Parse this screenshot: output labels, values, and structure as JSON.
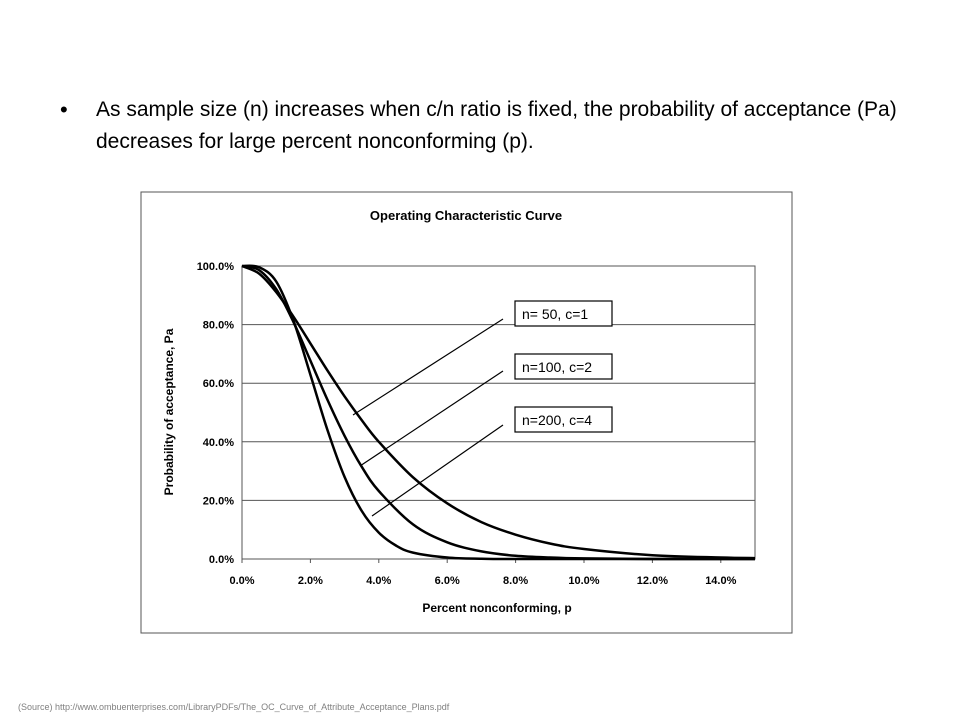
{
  "slide": {
    "bullet_text": "As sample size (n) increases when c/n ratio is fixed, the probability of acceptance (Pa) decreases for large percent nonconforming (p).",
    "source_note": "(Source) http://www.ombuenterprises.com/LibraryPDFs/The_OC_Curve_of_Attribute_Acceptance_Plans.pdf"
  },
  "chart_data": {
    "type": "line",
    "title": "Operating Characteristic Curve",
    "xlabel": "Percent nonconforming, p",
    "ylabel": "Probability of acceptance, Pa",
    "xlim": [
      0,
      0.15
    ],
    "ylim": [
      0,
      1
    ],
    "x_ticks": [
      "0.0%",
      "2.0%",
      "4.0%",
      "6.0%",
      "8.0%",
      "10.0%",
      "12.0%",
      "14.0%"
    ],
    "y_ticks": [
      "0.0%",
      "20.0%",
      "40.0%",
      "60.0%",
      "80.0%",
      "100.0%"
    ],
    "grid": "horizontal",
    "legend": "callout labels",
    "series": [
      {
        "name": "n= 50, c=1",
        "x": [
          0,
          0.005,
          0.01,
          0.015,
          0.02,
          0.025,
          0.03,
          0.035,
          0.04,
          0.05,
          0.06,
          0.07,
          0.08,
          0.09,
          0.1,
          0.12,
          0.14,
          0.15
        ],
        "y": [
          1.0,
          0.974,
          0.911,
          0.828,
          0.736,
          0.643,
          0.555,
          0.474,
          0.4,
          0.279,
          0.19,
          0.126,
          0.083,
          0.053,
          0.034,
          0.013,
          0.005,
          0.003
        ]
      },
      {
        "name": "n=100, c=2",
        "x": [
          0,
          0.005,
          0.01,
          0.015,
          0.02,
          0.025,
          0.03,
          0.035,
          0.04,
          0.05,
          0.06,
          0.07,
          0.08,
          0.09,
          0.1,
          0.12,
          0.15
        ],
        "y": [
          1.0,
          0.986,
          0.921,
          0.81,
          0.677,
          0.543,
          0.42,
          0.315,
          0.232,
          0.118,
          0.057,
          0.026,
          0.011,
          0.005,
          0.002,
          0.0,
          0.0
        ]
      },
      {
        "name": "n=200, c=4",
        "x": [
          0,
          0.005,
          0.01,
          0.015,
          0.02,
          0.025,
          0.03,
          0.035,
          0.04,
          0.045,
          0.05,
          0.06,
          0.07,
          0.08,
          0.1,
          0.15
        ],
        "y": [
          1.0,
          0.996,
          0.947,
          0.815,
          0.629,
          0.44,
          0.28,
          0.164,
          0.09,
          0.046,
          0.022,
          0.005,
          0.001,
          0.0,
          0.0,
          0.0
        ]
      }
    ]
  }
}
